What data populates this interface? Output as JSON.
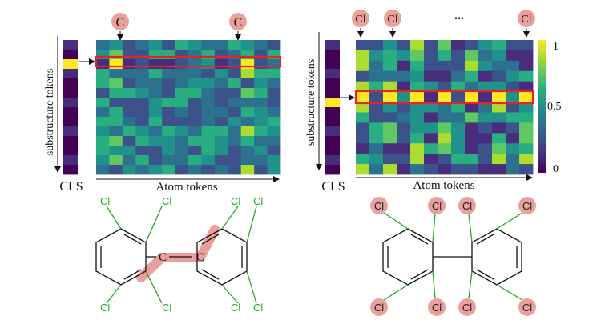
{
  "colors": {
    "highlight_box": "#e8231f",
    "badge_fill": "#e9a19d",
    "chlorine_text": "#22aa22",
    "bond_highlight": "#e58f8b",
    "viridis": [
      "#440154",
      "#472d7b",
      "#3b528b",
      "#2c728e",
      "#21918c",
      "#28ae80",
      "#5ec962",
      "#addc30",
      "#fde725"
    ]
  },
  "left_panel": {
    "badges": [
      "C",
      "C"
    ],
    "y_axis_label": "substructure tokens",
    "x_axis_label": "Atom tokens",
    "cls_label": "CLS",
    "molecule": {
      "atoms": [
        "Cl",
        "Cl",
        "Cl",
        "Cl",
        "C",
        "C",
        "Cl",
        "Cl",
        "Cl",
        "Cl"
      ]
    }
  },
  "right_panel": {
    "badges": [
      "Cl",
      "Cl",
      "Cl"
    ],
    "ellipsis": "...",
    "y_axis_label": "substructure tokens",
    "x_axis_label": "Atom tokens",
    "cls_label": "CLS",
    "colorbar_ticks": [
      "1",
      "0.5",
      "0"
    ],
    "molecule": {
      "atoms": [
        "Cl",
        "Cl",
        "Cl",
        "Cl",
        "Cl",
        "Cl",
        "Cl",
        "Cl"
      ]
    }
  }
}
